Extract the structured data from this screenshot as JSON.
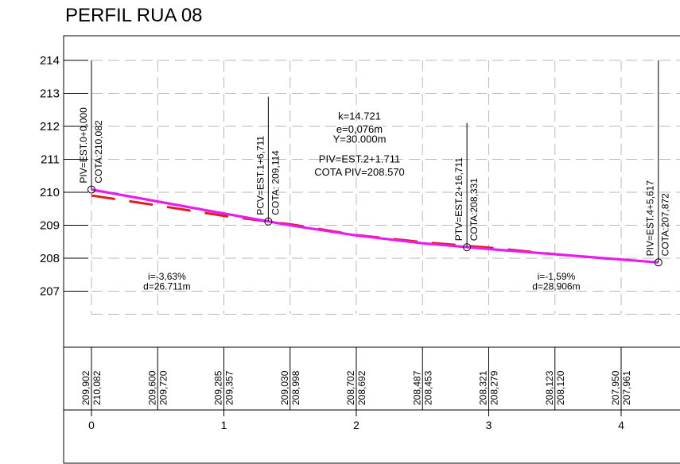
{
  "title": "PERFIL RUA 08",
  "chart_data": {
    "type": "line",
    "title": "PERFIL RUA 08",
    "x_stations": [
      0,
      1,
      2,
      3,
      4
    ],
    "x_tick_labels": [
      "0",
      "1",
      "2",
      "3",
      "4"
    ],
    "y_tick_labels": [
      "214",
      "213",
      "212",
      "211",
      "210",
      "209",
      "208",
      "207"
    ],
    "ylim": [
      206,
      214
    ],
    "grid": true,
    "series": [
      {
        "style": "dashed",
        "color": "#e31b1b",
        "x": [
          0,
          0.5,
          1,
          1.5,
          2,
          2.5,
          3,
          3.5,
          4
        ],
        "y": [
          209.902,
          209.6,
          209.285,
          209.03,
          208.702,
          208.487,
          208.321,
          208.123,
          207.95
        ]
      },
      {
        "style": "solid",
        "color": "#e81bf0",
        "x": [
          0,
          0.5,
          1,
          1.5,
          2,
          2.5,
          3,
          3.5,
          4
        ],
        "y": [
          210.082,
          209.72,
          209.357,
          208.998,
          208.692,
          208.453,
          208.279,
          208.12,
          207.961
        ]
      }
    ],
    "points": [
      {
        "x": 0,
        "y": 210.082,
        "line1": "PIV=EST.0+0,000",
        "line2": "COTA:210,082"
      },
      {
        "x": 1.3355,
        "y": 209.114,
        "line1": "PCV=EST.1+6,711",
        "line2": "COTA: 209,114"
      },
      {
        "x": 2.8355,
        "y": 208.331,
        "line1": "PTV=EST.2+16,711",
        "line2": "COTA:208,331"
      },
      {
        "x": 4.28085,
        "y": 207.872,
        "line1": "PIV=EST.4+5,617",
        "line2": "COTA:207,872"
      }
    ],
    "curve_notes": [
      "k=14.721",
      "e=0,076m",
      "Y=30.000m",
      "PIV=EST.2+1.711",
      "COTA PIV=208.570"
    ],
    "slopes": [
      {
        "i": "i=-3,63%",
        "d": "d=26.711m"
      },
      {
        "i": "i=-1,59%",
        "d": "d=28,906m"
      }
    ],
    "table_columns": [
      {
        "x": 0,
        "top": "209,902",
        "bottom": "210,082"
      },
      {
        "x": 0.5,
        "top": "209,600",
        "bottom": "209,720"
      },
      {
        "x": 1,
        "top": "209,285",
        "bottom": "209,357"
      },
      {
        "x": 1.5,
        "top": "209,030",
        "bottom": "208,998"
      },
      {
        "x": 2,
        "top": "208,702",
        "bottom": "208,692"
      },
      {
        "x": 2.5,
        "top": "208,487",
        "bottom": "208,453"
      },
      {
        "x": 3,
        "top": "208,321",
        "bottom": "208,279"
      },
      {
        "x": 3.5,
        "top": "208,123",
        "bottom": "208,120"
      },
      {
        "x": 4,
        "top": "207,950",
        "bottom": "207,961"
      }
    ]
  }
}
